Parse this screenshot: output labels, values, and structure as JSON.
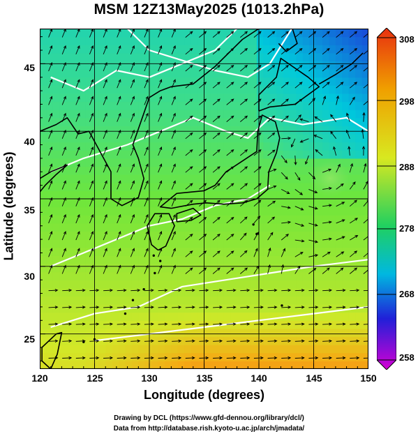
{
  "title": "MSM 12Z13May2025 (1013.2hPa)",
  "axes": {
    "xlabel": "Longitude (degrees)",
    "ylabel": "Latitude  (degrees)",
    "xticks": [
      "120",
      "125",
      "130",
      "135",
      "140",
      "145",
      "150"
    ],
    "yticks": [
      "45",
      "40",
      "35",
      "30",
      "25"
    ],
    "xlim": [
      120,
      150
    ],
    "ylim": [
      22.4,
      47.6
    ]
  },
  "colorbar": {
    "ticks": [
      "308",
      "298",
      "288",
      "278",
      "268",
      "258"
    ],
    "range": [
      258,
      308
    ],
    "colors": [
      "#d400d4",
      "#2020d8",
      "#00b8e0",
      "#20d060",
      "#d8e820",
      "#f0a000",
      "#e83010"
    ]
  },
  "chart_data": {
    "type": "heatmap",
    "title": "MSM 12Z13May2025 (1013.2hPa)",
    "xlabel": "Longitude (degrees)",
    "ylabel": "Latitude  (degrees)",
    "xlim": [
      120,
      150
    ],
    "ylim": [
      22.4,
      47.6
    ],
    "grid": true,
    "colorbar_range": [
      258,
      308
    ],
    "field_samples": [
      {
        "lon": 122,
        "lat": 45,
        "value": 288
      },
      {
        "lon": 148,
        "lat": 45,
        "value": 280
      },
      {
        "lon": 140,
        "lat": 40,
        "value": 285
      },
      {
        "lon": 125,
        "lat": 35,
        "value": 289
      },
      {
        "lon": 145,
        "lat": 33,
        "value": 290
      },
      {
        "lon": 125,
        "lat": 28,
        "value": 292
      },
      {
        "lon": 135,
        "lat": 28,
        "value": 294
      },
      {
        "lon": 145,
        "lat": 25,
        "value": 297
      },
      {
        "lon": 135,
        "lat": 24,
        "value": 298
      }
    ]
  },
  "footer": {
    "line1": "Drawing by DCL (https://www.gfd-dennou.org/library/dcl/)",
    "line2": "Data from http://database.rish.kyoto-u.ac.jp/arch/jmadata/"
  }
}
